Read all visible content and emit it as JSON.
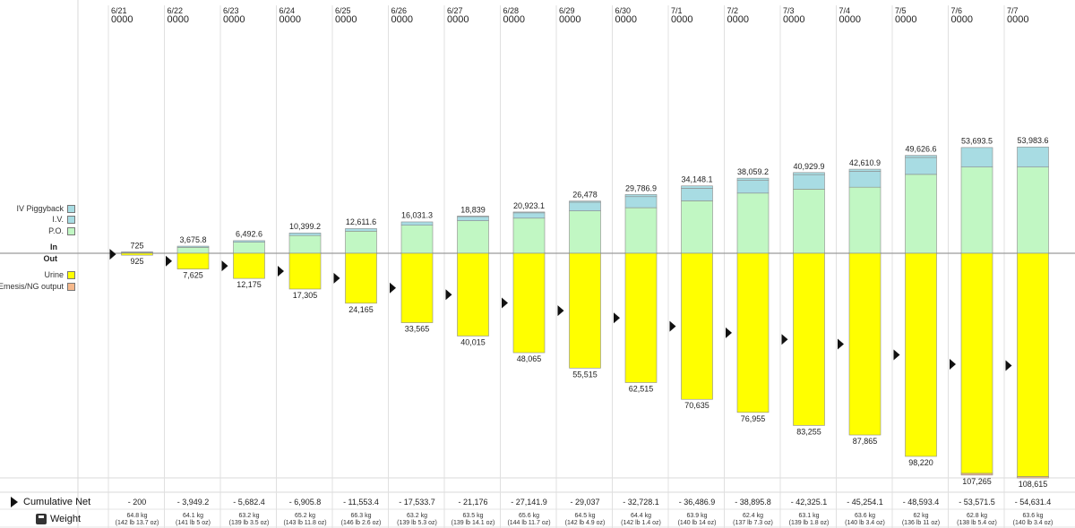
{
  "legend": {
    "in_items": [
      {
        "label": "IV Piggyback",
        "color": "#a8dce3"
      },
      {
        "label": "I.V.",
        "color": "#a8dce3"
      },
      {
        "label": "P.O.",
        "color": "#c1f7c3"
      }
    ],
    "in_label": "In",
    "out_label": "Out",
    "out_items": [
      {
        "label": "Urine",
        "color": "#ffff00"
      },
      {
        "label": "Emesis/NG output",
        "color": "#f6b98c"
      }
    ]
  },
  "footer": {
    "cumulative_label": "Cumulative Net",
    "weight_label": "Weight"
  },
  "chart_data": {
    "type": "bar",
    "categories": [
      "6/21",
      "6/22",
      "6/23",
      "6/24",
      "6/25",
      "6/26",
      "6/27",
      "6/28",
      "6/29",
      "6/30",
      "7/1",
      "7/2",
      "7/3",
      "7/4",
      "7/5",
      "7/6",
      "7/7"
    ],
    "category_times": [
      "0000",
      "0000",
      "0000",
      "0000",
      "0000",
      "0000",
      "0000",
      "0000",
      "0000",
      "0000",
      "0000",
      "0000",
      "0000",
      "0000",
      "0000",
      "0000",
      "0000"
    ],
    "in_totals": [
      "725",
      "3,675.8",
      "6,492.6",
      "10,399.2",
      "12,611.6",
      "16,031.3",
      "18,839",
      "20,923.1",
      "26,478",
      "29,786.9",
      "34,148.1",
      "38,059.2",
      "40,929.9",
      "42,610.9",
      "49,626.6",
      "53,693.5",
      "53,983.6"
    ],
    "in_values": [
      725,
      3675.8,
      6492.6,
      10399.2,
      12611.6,
      16031.3,
      18839,
      20923.1,
      26478,
      29786.9,
      34148.1,
      38059.2,
      40929.9,
      42610.9,
      49626.6,
      53693.5,
      53983.6
    ],
    "po_values": [
      400,
      3000,
      5600,
      9000,
      11200,
      14200,
      16500,
      17800,
      21500,
      23100,
      26600,
      30500,
      32500,
      33500,
      40000,
      43700,
      43700
    ],
    "iv_values": [
      300,
      600,
      800,
      1300,
      1300,
      1700,
      2100,
      2700,
      4400,
      5600,
      6300,
      6400,
      7400,
      8000,
      8600,
      9900,
      10200
    ],
    "out_totals": [
      "925",
      "7,625",
      "12,175",
      "17,305",
      "24,165",
      "33,565",
      "40,015",
      "48,065",
      "55,515",
      "62,515",
      "70,635",
      "76,955",
      "83,255",
      "87,865",
      "98,220",
      "107,265",
      "108,615"
    ],
    "out_values": [
      925,
      7625,
      12175,
      17305,
      24165,
      33565,
      40015,
      48065,
      55515,
      62515,
      70635,
      76955,
      83255,
      87865,
      98220,
      107265,
      108615
    ],
    "emesis_values": [
      0,
      0,
      0,
      0,
      0,
      0,
      0,
      0,
      0,
      0,
      0,
      0,
      0,
      0,
      0,
      800,
      600
    ],
    "cumulative_net": [
      "- 200",
      "- 3,949.2",
      "- 5,682.4",
      "- 6,905.8",
      "- 11,553.4",
      "- 17,533.7",
      "- 21,176",
      "- 27,141.9",
      "- 29,037",
      "- 32,728.1",
      "- 36,486.9",
      "- 38,895.8",
      "- 42,325.1",
      "- 45,254.1",
      "- 48,593.4",
      "- 53,571.5",
      "- 54,631.4"
    ],
    "weight_kg": [
      "64.8 kg",
      "64.1 kg",
      "63.2 kg",
      "65.2 kg",
      "66.3 kg",
      "63.2 kg",
      "63.5 kg",
      "65.6 kg",
      "64.5 kg",
      "64.4 kg",
      "63.9 kg",
      "62.4 kg",
      "63.1 kg",
      "63.6 kg",
      "62 kg",
      "62.8 kg",
      "63.6 kg"
    ],
    "weight_lb": [
      "(142 lb 13.7 oz)",
      "(141 lb 5 oz)",
      "(139 lb 3.5 oz)",
      "(143 lb 11.8 oz)",
      "(146 lb 2.6 oz)",
      "(139 lb 5.3 oz)",
      "(139 lb 14.1 oz)",
      "(144 lb 11.7 oz)",
      "(142 lb 4.9 oz)",
      "(142 lb 1.4 oz)",
      "(140 lb 14 oz)",
      "(137 lb 7.3 oz)",
      "(139 lb 1.8 oz)",
      "(140 lb 3.4 oz)",
      "(136 lb 11 oz)",
      "(138 lb 5.4 oz)",
      "(140 lb 3.4 oz)"
    ],
    "colors": {
      "po": "#c1f7c3",
      "iv": "#a8dce3",
      "ivpb": "#a8dce3",
      "urine": "#ffff00",
      "emesis": "#f6b98c",
      "bar_border": "#8a8a8a"
    },
    "grid": true
  }
}
